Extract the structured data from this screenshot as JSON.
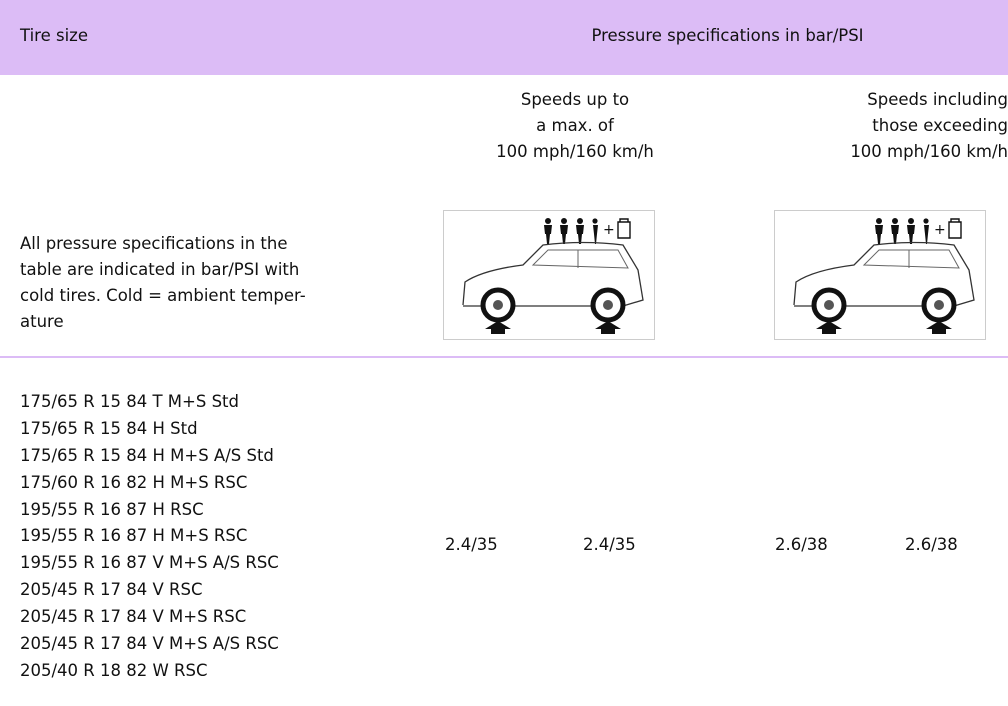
{
  "header": {
    "tire_size": "Tire size",
    "pressure": "Pressure specifications in bar/PSI"
  },
  "speed_headings": [
    [
      "Speeds up to",
      "a max. of",
      "100 mph/160 km/h"
    ],
    [
      "Speeds including",
      "those exceeding",
      "100 mph/160 km/h"
    ]
  ],
  "note": [
    "All pressure specifications in the",
    "table are indicated in bar/PSI with",
    "cold tires. Cold = ambient temper-",
    "ature"
  ],
  "tire_sizes": [
    "175/65 R 15 84 T M+S Std",
    "175/65 R 15 84 H Std",
    "175/65 R 15 84 H M+S A/S Std",
    "175/60 R 16 82 H M+S RSC",
    "195/55 R 16 87 H RSC",
    "195/55 R 16 87 H M+S RSC",
    "195/55 R 16 87 V M+S A/S RSC",
    "205/45 R 17 84 V RSC",
    "205/45 R 17 84 V M+S RSC",
    "205/45 R 17 84 V M+S A/S RSC",
    "205/40 R 18 82 W RSC"
  ],
  "pressures": [
    "2.4/35",
    "2.4/35",
    "2.6/38",
    "2.6/38"
  ]
}
